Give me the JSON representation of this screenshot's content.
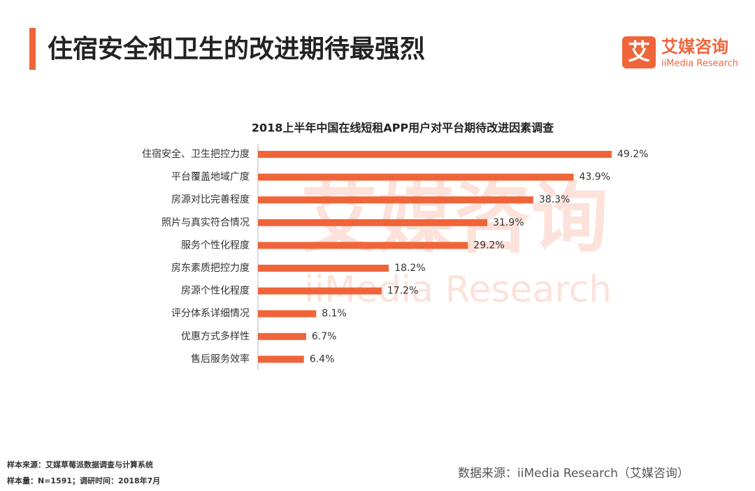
{
  "header": {
    "title": "住宿安全和卫生的改进期待最强烈"
  },
  "logo": {
    "icon": "艾",
    "name": "艾媒咨询",
    "sub": "iiMedia Research"
  },
  "chart_data": {
    "type": "bar",
    "orientation": "horizontal",
    "title": "2018上半年中国在线短租APP用户对平台期待改进因素调查",
    "categories": [
      "住宿安全、卫生把控力度",
      "平台覆盖地域广度",
      "房源对比完善程度",
      "照片与真实符合情况",
      "服务个性化程度",
      "房东素质把控力度",
      "房源个性化程度",
      "评分体系详细情况",
      "优惠方式多样性",
      "售后服务效率"
    ],
    "values": [
      49.2,
      43.9,
      38.3,
      31.9,
      29.2,
      18.2,
      17.2,
      8.1,
      6.7,
      6.4
    ],
    "value_labels": [
      "49.2%",
      "43.9%",
      "38.3%",
      "31.9%",
      "29.2%",
      "18.2%",
      "17.2%",
      "8.1%",
      "6.7%",
      "6.4%"
    ],
    "color": "#f0643a"
  },
  "footer": {
    "sample_source": "样本来源：艾媒草莓派数据调查与计算系统",
    "sample_size": "样本量：N=1591；调研时间：2018年7月",
    "data_source": "数据来源：iiMedia Research（艾媒咨询）"
  }
}
